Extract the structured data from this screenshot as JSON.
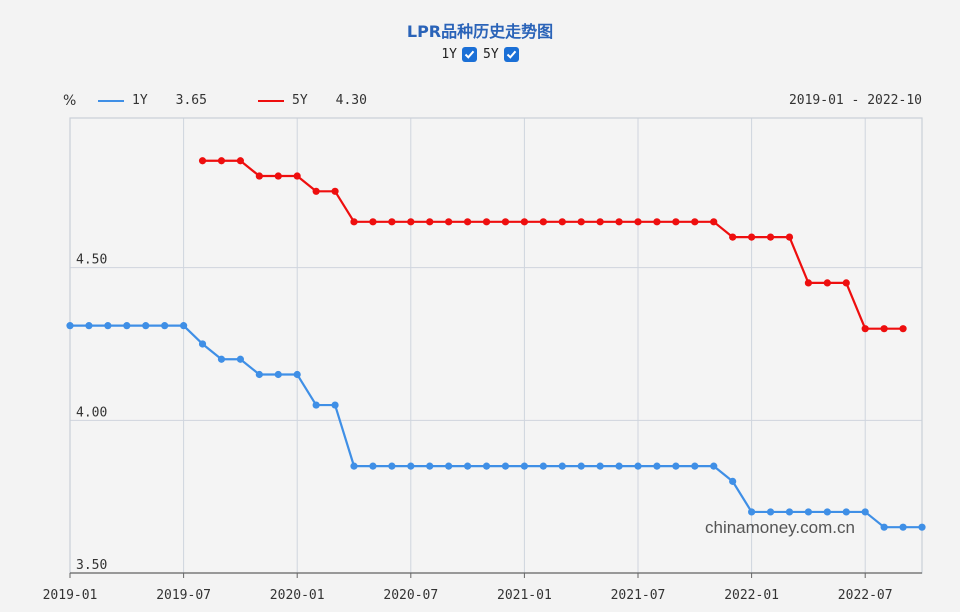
{
  "title": "LPR品种历史走势图",
  "toggles": [
    {
      "label": "1Y",
      "checked": true
    },
    {
      "label": "5Y",
      "checked": true
    }
  ],
  "legend": {
    "unit": "%",
    "items": [
      {
        "name": "1Y",
        "value": "3.65",
        "color": "#3f8fe6"
      },
      {
        "name": "5Y",
        "value": "4.30",
        "color": "#ee0e0e"
      }
    ],
    "date_range": "2019-01 - 2022-10"
  },
  "watermark": "chinamoney.com.cn",
  "chart_data": {
    "type": "line",
    "title": "LPR品种历史走势图",
    "ylabel": "%",
    "ylim": [
      3.5,
      4.99
    ],
    "yticks": [
      "3.50",
      "4.00",
      "4.50"
    ],
    "xticks": [
      "2019-01",
      "2019-07",
      "2020-01",
      "2020-07",
      "2021-01",
      "2021-07",
      "2022-01",
      "2022-07"
    ],
    "grid": true,
    "start_month": "2019-01",
    "end_month": "2022-10",
    "series": [
      {
        "name": "1Y",
        "color": "#3f8fe6",
        "start_month": "2019-01",
        "values": [
          4.31,
          4.31,
          4.31,
          4.31,
          4.31,
          4.31,
          4.31,
          4.25,
          4.2,
          4.2,
          4.15,
          4.15,
          4.15,
          4.05,
          4.05,
          3.85,
          3.85,
          3.85,
          3.85,
          3.85,
          3.85,
          3.85,
          3.85,
          3.85,
          3.85,
          3.85,
          3.85,
          3.85,
          3.85,
          3.85,
          3.85,
          3.85,
          3.85,
          3.85,
          3.85,
          3.8,
          3.7,
          3.7,
          3.7,
          3.7,
          3.7,
          3.7,
          3.7,
          3.65,
          3.65,
          3.65
        ]
      },
      {
        "name": "5Y",
        "color": "#ee0e0e",
        "start_month": "2019-08",
        "values": [
          4.85,
          4.85,
          4.85,
          4.8,
          4.8,
          4.8,
          4.75,
          4.75,
          4.65,
          4.65,
          4.65,
          4.65,
          4.65,
          4.65,
          4.65,
          4.65,
          4.65,
          4.65,
          4.65,
          4.65,
          4.65,
          4.65,
          4.65,
          4.65,
          4.65,
          4.65,
          4.65,
          4.65,
          4.6,
          4.6,
          4.6,
          4.6,
          4.45,
          4.45,
          4.45,
          4.3,
          4.3,
          4.3
        ]
      }
    ]
  }
}
